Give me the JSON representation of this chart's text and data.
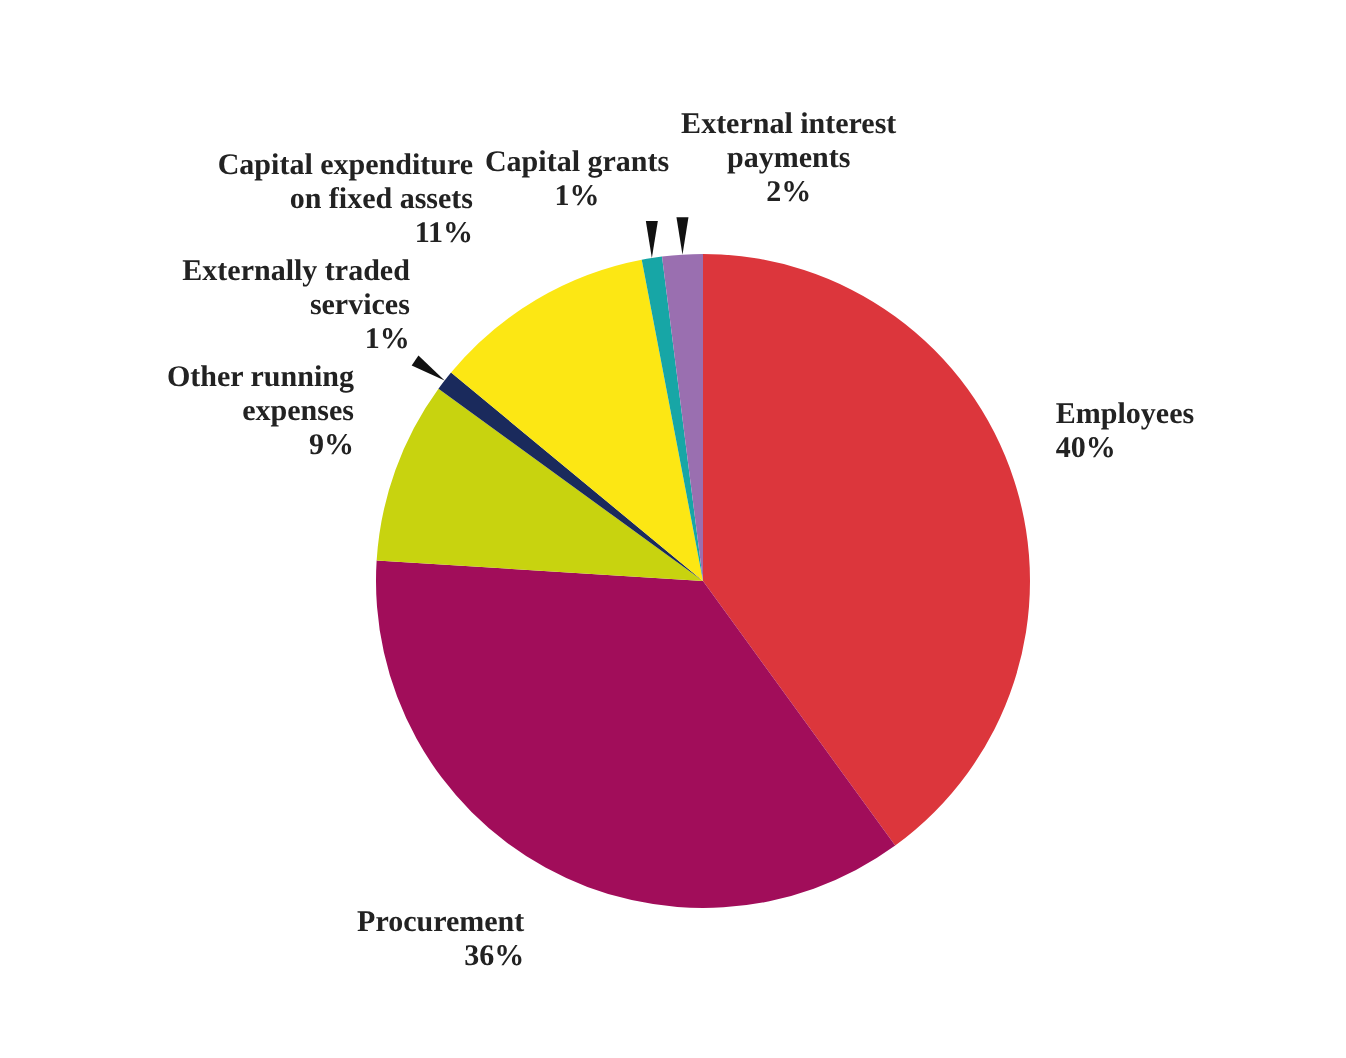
{
  "chart_data": {
    "type": "pie",
    "categories": [
      "Employees",
      "Procurement",
      "Other running expenses",
      "Externally traded services",
      "Capital expenditure on fixed assets",
      "Capital grants",
      "External interest payments"
    ],
    "values": [
      40,
      36,
      9,
      1,
      11,
      1,
      2
    ],
    "value_labels": [
      "40%",
      "36%",
      "9%",
      "1%",
      "11%",
      "1%",
      "2%"
    ],
    "colors": [
      "#dc363c",
      "#a10d5a",
      "#c8d30f",
      "#1a2a5c",
      "#fce714",
      "#17a6a6",
      "#9a6fb0"
    ],
    "legend": false
  }
}
